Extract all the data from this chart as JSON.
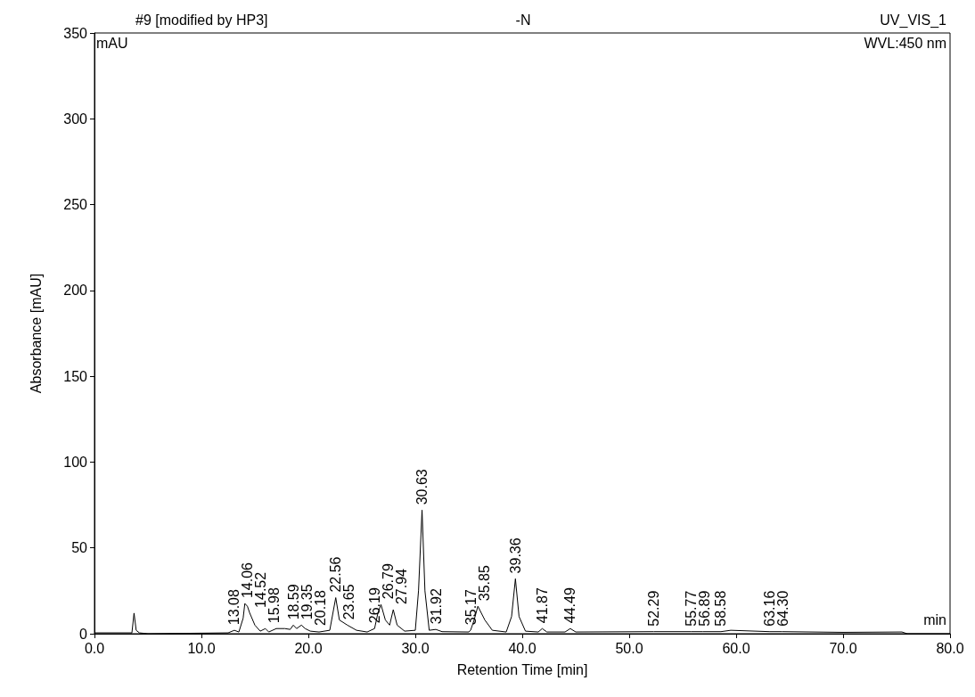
{
  "chart_data": {
    "type": "line",
    "xlabel": "Retention Time [min]",
    "ylabel": "Absorbance [mAU]",
    "grid": false,
    "marker": "none",
    "line_style": "solid",
    "xlim": [
      0,
      80
    ],
    "xticks": [
      {
        "value": 0,
        "label": "0.0"
      },
      {
        "value": 10,
        "label": "10.0"
      },
      {
        "value": 20,
        "label": "20.0"
      },
      {
        "value": 30,
        "label": "30.0"
      },
      {
        "value": 40,
        "label": "40.0"
      },
      {
        "value": 50,
        "label": "50.0"
      },
      {
        "value": 60,
        "label": "60.0"
      },
      {
        "value": 70,
        "label": "70.0"
      },
      {
        "value": 80,
        "label": "80.0"
      }
    ],
    "ylim": [
      0,
      350
    ],
    "yticks": [
      0,
      50,
      100,
      150,
      200,
      250,
      300,
      350
    ],
    "series": [
      {
        "color": "#000000",
        "x": [
          0,
          3.5,
          3.7,
          3.9,
          4.2,
          5,
          12.5,
          13.08,
          13.5,
          13.9,
          14.06,
          14.3,
          14.52,
          15,
          15.5,
          15.98,
          16.3,
          17,
          17.8,
          18.3,
          18.59,
          18.9,
          19.35,
          19.7,
          20.18,
          21,
          22,
          22.56,
          22.9,
          23.65,
          24.5,
          25.5,
          26.19,
          26.5,
          26.79,
          27.2,
          27.6,
          27.94,
          28.3,
          29,
          30,
          30.3,
          30.63,
          30.9,
          31.3,
          31.92,
          32.5,
          35,
          35.17,
          35.5,
          35.85,
          36.5,
          37.2,
          38.5,
          39,
          39.36,
          39.7,
          40.3,
          41.5,
          41.87,
          42.3,
          44,
          44.49,
          45,
          52.29,
          55.77,
          56.89,
          58.58,
          59.5,
          63.16,
          64.3,
          70,
          75.5,
          76,
          80
        ],
        "values": [
          0.5,
          0.5,
          12,
          2,
          0.5,
          0,
          0.5,
          2,
          1,
          9,
          17.6,
          16,
          12,
          5,
          1.5,
          3,
          1,
          3,
          3,
          2.5,
          5,
          3,
          5,
          3,
          1.5,
          1,
          2,
          21,
          8,
          5,
          2,
          1,
          3,
          12,
          17,
          8,
          5,
          14,
          5,
          1.5,
          2,
          25,
          72,
          25,
          2,
          2.5,
          1.2,
          1,
          2,
          8,
          16,
          8,
          2,
          1,
          10,
          32,
          10,
          1.5,
          1,
          3,
          1,
          1,
          3,
          1,
          1.2,
          1.2,
          1.2,
          1.2,
          2,
          1.2,
          1.2,
          0.8,
          1,
          0,
          0
        ]
      }
    ],
    "annotations": [
      "#9 [modified by HP3]",
      "-N",
      "UV_VIS_1",
      "mAU",
      "WVL:450 nm",
      "min",
      {
        "text": "13.08",
        "x": 13.08,
        "y": 2
      },
      {
        "text": "14.06",
        "x": 14.06,
        "y": 17.6
      },
      {
        "text": "14.52",
        "x": 14.52,
        "y": 12
      },
      {
        "text": "15.98",
        "x": 15.98,
        "y": 3
      },
      {
        "text": "18.59",
        "x": 18.59,
        "y": 5
      },
      {
        "text": "19.35",
        "x": 19.35,
        "y": 5
      },
      {
        "text": "20.18",
        "x": 20.18,
        "y": 1.5
      },
      {
        "text": "22.56",
        "x": 22.56,
        "y": 21
      },
      {
        "text": "23.65",
        "x": 23.65,
        "y": 5
      },
      {
        "text": "26.19",
        "x": 26.19,
        "y": 3
      },
      {
        "text": "26.79",
        "x": 26.79,
        "y": 17
      },
      {
        "text": "27.94",
        "x": 27.94,
        "y": 14
      },
      {
        "text": "30.63",
        "x": 30.63,
        "y": 72
      },
      {
        "text": "31.92",
        "x": 31.92,
        "y": 2.5
      },
      {
        "text": "35.17",
        "x": 35.17,
        "y": 2
      },
      {
        "text": "35.85",
        "x": 35.85,
        "y": 16
      },
      {
        "text": "39.36",
        "x": 39.36,
        "y": 32
      },
      {
        "text": "41.87",
        "x": 41.87,
        "y": 3
      },
      {
        "text": "44.49",
        "x": 44.49,
        "y": 3
      },
      {
        "text": "52.29",
        "x": 52.29,
        "y": 1.2
      },
      {
        "text": "55.77",
        "x": 55.77,
        "y": 1.2
      },
      {
        "text": "56.89",
        "x": 56.89,
        "y": 1.2
      },
      {
        "text": "58.58",
        "x": 58.58,
        "y": 1.2
      },
      {
        "text": "63.16",
        "x": 63.16,
        "y": 1.2
      },
      {
        "text": "64.30",
        "x": 64.3,
        "y": 1.2
      }
    ]
  }
}
